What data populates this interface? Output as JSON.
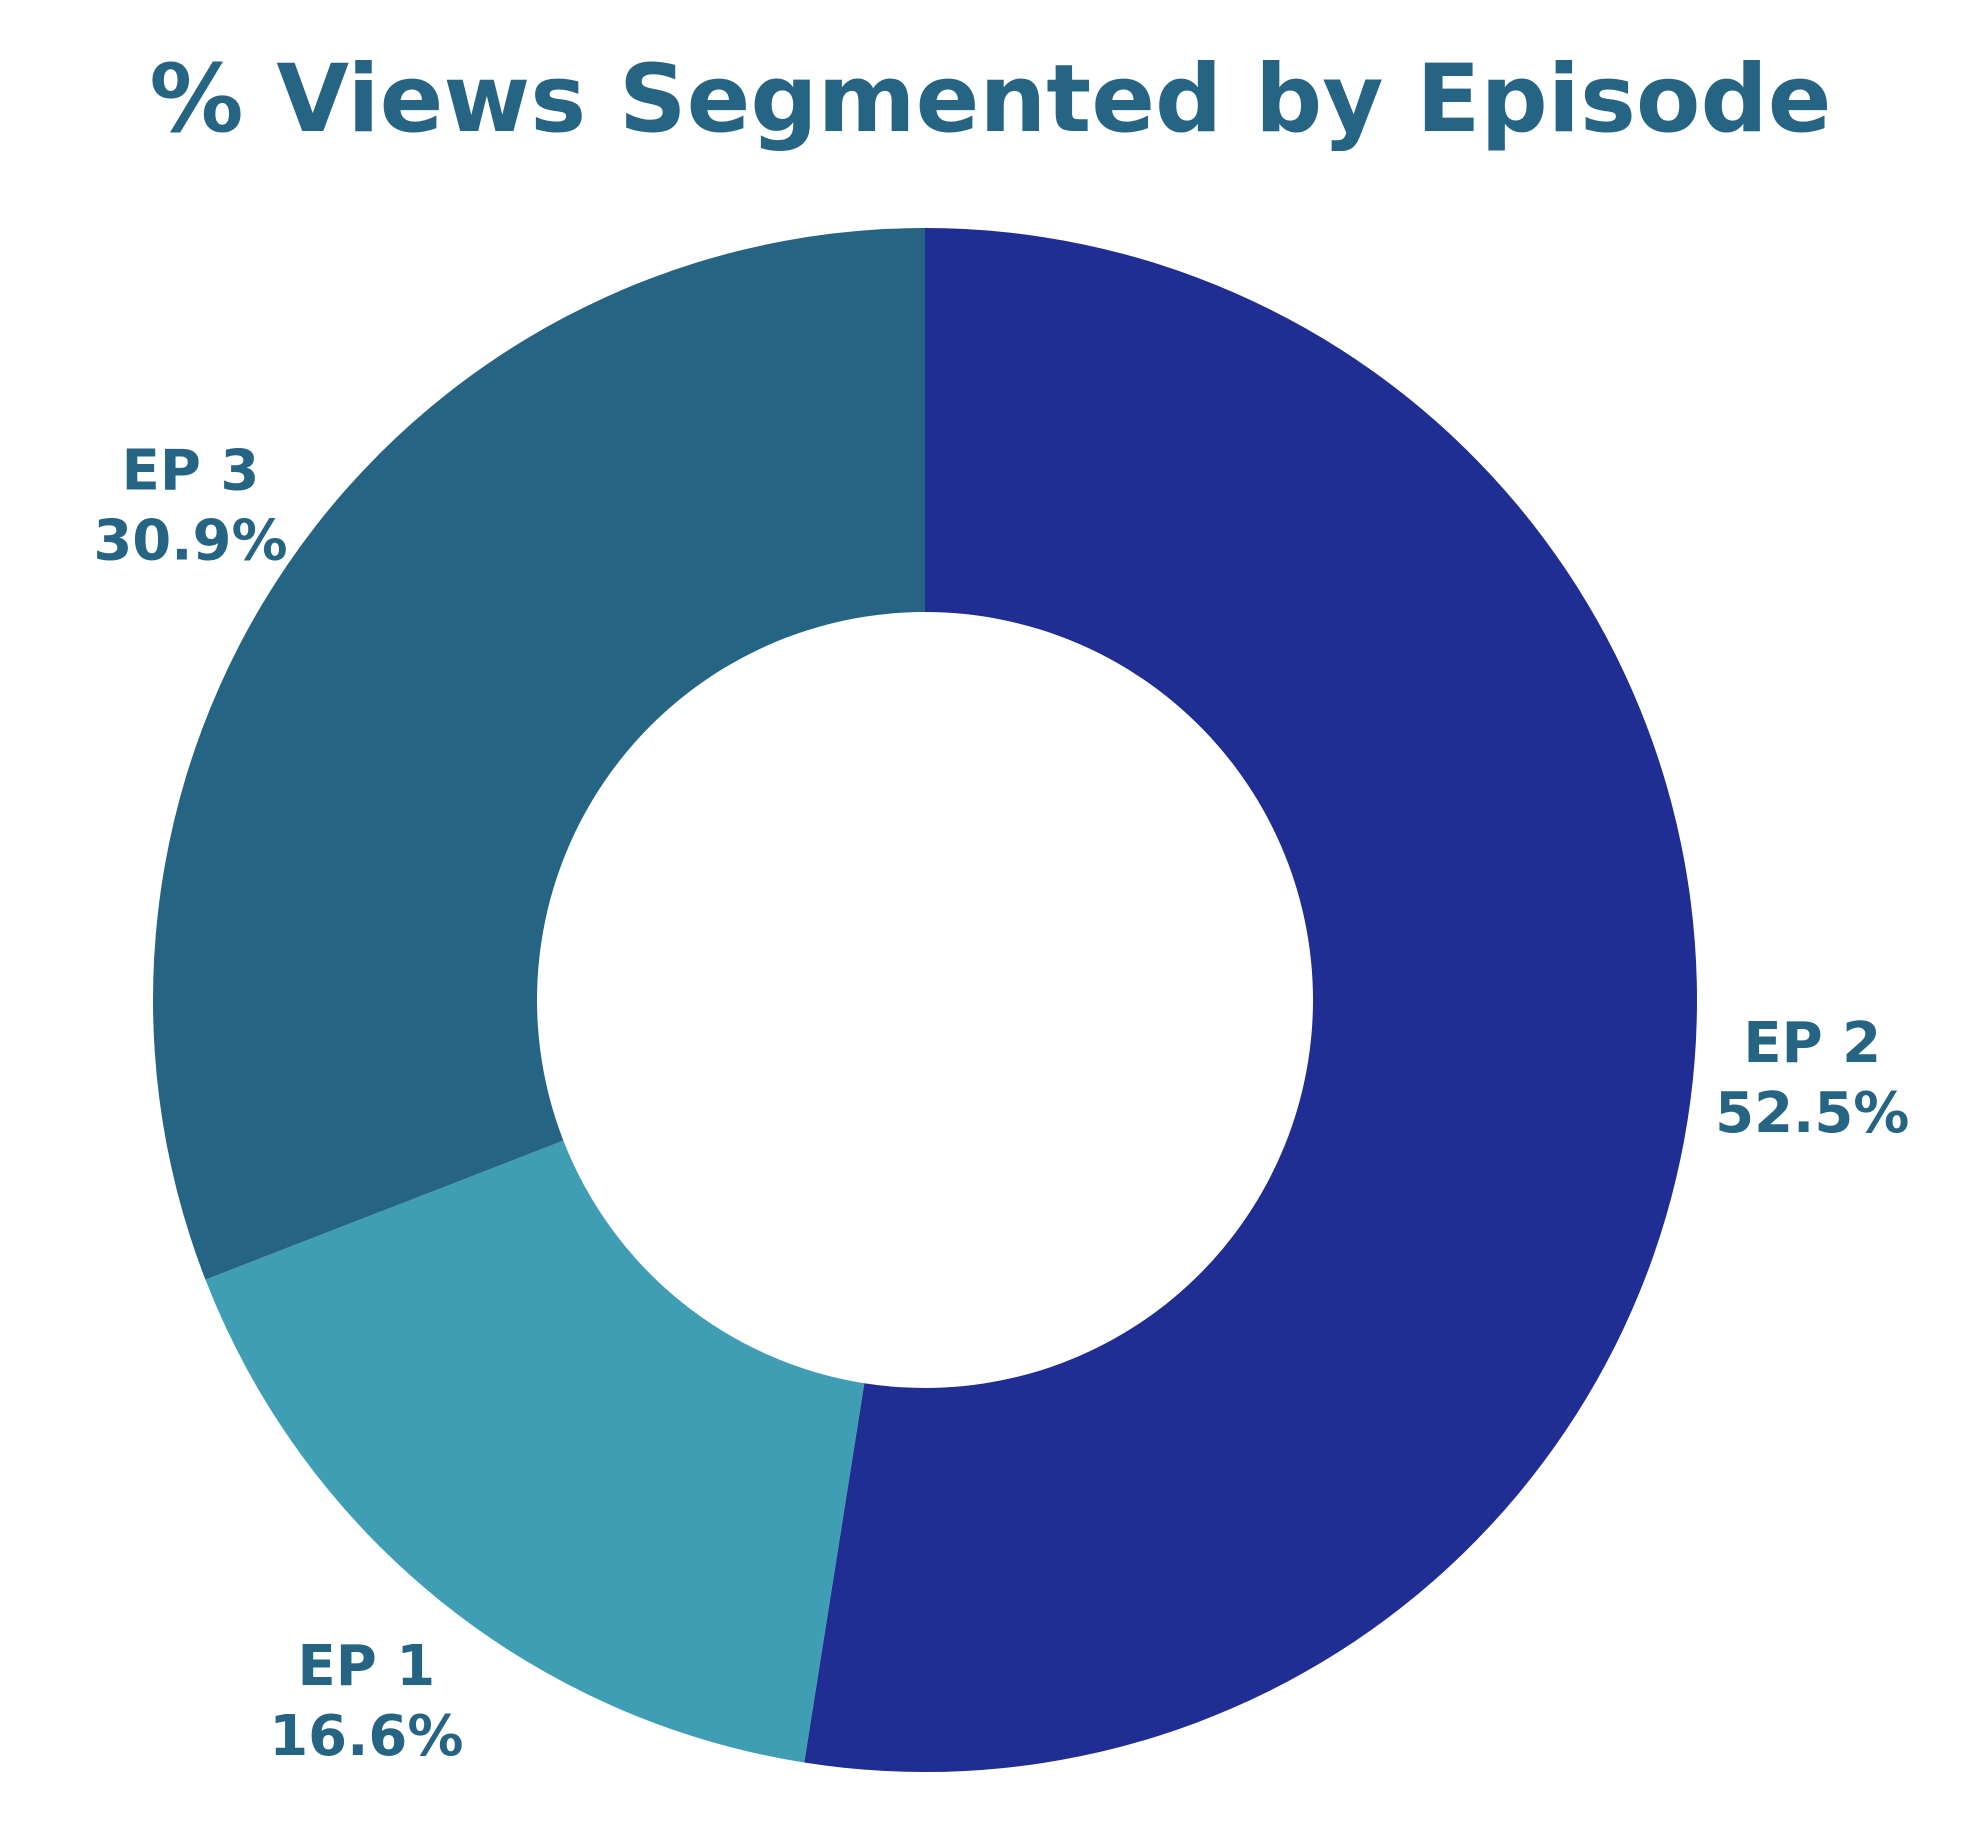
{
  "chart_data": {
    "type": "pie",
    "variant": "donut",
    "title": "% Views Segmented by Episode",
    "slices": [
      {
        "name": "EP 2",
        "value": 52.5,
        "label": "52.5%",
        "color": "#202d93"
      },
      {
        "name": "EP 1",
        "value": 16.6,
        "label": "16.6%",
        "color": "#409eb4"
      },
      {
        "name": "EP 3",
        "value": 30.9,
        "label": "30.9%",
        "color": "#256482"
      }
    ],
    "start_angle": "12 o'clock",
    "direction": "clockwise",
    "label_color": "#256482",
    "legend": "none"
  }
}
